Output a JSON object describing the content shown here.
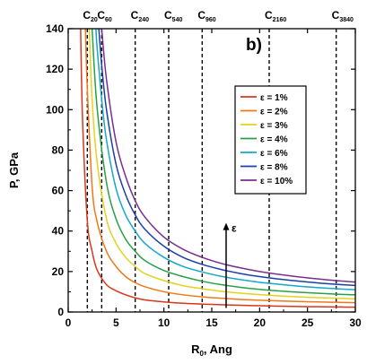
{
  "chart_data": {
    "type": "line",
    "title": "",
    "panel_label": "b)",
    "xlabel": {
      "main": "R",
      "sub": "0",
      "rest": ",  Ang"
    },
    "ylabel": "P, GPa",
    "xlim": [
      0,
      30
    ],
    "ylim": [
      0,
      140
    ],
    "x_ticks": [
      0,
      5,
      10,
      15,
      20,
      25,
      30
    ],
    "y_ticks": [
      0,
      20,
      40,
      60,
      80,
      100,
      120,
      140
    ],
    "grid": false,
    "legend_position": "right-middle",
    "series": [
      {
        "name": "ε = 1%",
        "color": "#d9361c",
        "x": [
          1.3,
          1.5,
          2,
          2.5,
          3,
          4,
          5,
          6,
          7,
          8,
          10,
          12,
          14,
          16,
          18,
          20,
          22,
          24,
          26,
          28,
          30
        ],
        "y": [
          140,
          95,
          45,
          30,
          21,
          13.5,
          10.5,
          8.5,
          7,
          6,
          5,
          4.3,
          3.9,
          3.6,
          3.3,
          3.1,
          2.9,
          2.7,
          2.6,
          2.5,
          2.4
        ]
      },
      {
        "name": "ε = 2%",
        "color": "#f07818",
        "x": [
          1.8,
          2,
          2.5,
          3,
          4,
          5,
          6,
          7,
          8,
          10,
          12,
          14,
          16,
          18,
          20,
          22,
          24,
          26,
          28,
          30
        ],
        "y": [
          140,
          110,
          62,
          45,
          30,
          22.5,
          17.5,
          14.5,
          12.5,
          10,
          8.5,
          7.5,
          6.8,
          6.2,
          5.8,
          5.5,
          5.2,
          5,
          4.8,
          4.6
        ]
      },
      {
        "name": "ε = 3%",
        "color": "#e3d21e",
        "x": [
          2.2,
          2.5,
          3,
          4,
          5,
          6,
          7,
          8,
          10,
          12,
          14,
          16,
          18,
          20,
          22,
          24,
          26,
          28,
          30
        ],
        "y": [
          140,
          105,
          75,
          46,
          34,
          27,
          22.5,
          19,
          15.5,
          13,
          11.5,
          10.2,
          9.3,
          8.6,
          8,
          7.5,
          7.1,
          6.8,
          6.5
        ]
      },
      {
        "name": "ε = 4%",
        "color": "#28a046",
        "x": [
          2.5,
          3,
          4,
          5,
          6,
          7,
          8,
          10,
          12,
          14,
          16,
          18,
          20,
          22,
          24,
          26,
          28,
          30
        ],
        "y": [
          140,
          102,
          64,
          46,
          36,
          30,
          25.5,
          20.5,
          17.5,
          15.2,
          13.5,
          12.2,
          11.2,
          10.4,
          9.8,
          9.3,
          8.8,
          8.5
        ]
      },
      {
        "name": "ε = 6%",
        "color": "#16a7c9",
        "x": [
          2.9,
          3,
          3.5,
          4,
          5,
          6,
          7,
          8,
          10,
          12,
          14,
          16,
          18,
          20,
          22,
          24,
          26,
          28,
          30
        ],
        "y": [
          140,
          132,
          105,
          85,
          61,
          48,
          40,
          34,
          27,
          22.5,
          19.8,
          17.6,
          16,
          14.7,
          13.7,
          12.8,
          12.1,
          11.5,
          11
        ]
      },
      {
        "name": "ε = 8%",
        "color": "#1c3fa6",
        "x": [
          3.2,
          3.5,
          4,
          5,
          6,
          7,
          8,
          10,
          12,
          14,
          16,
          18,
          20,
          22,
          24,
          26,
          28,
          30
        ],
        "y": [
          140,
          122,
          100,
          73,
          58,
          48,
          41,
          32.5,
          27,
          23.5,
          21,
          19,
          17.5,
          16.3,
          15.3,
          14.4,
          13.7,
          13.1
        ]
      },
      {
        "name": "ε = 10%",
        "color": "#7a2e8e",
        "x": [
          3.5,
          4,
          5,
          6,
          7,
          8,
          10,
          12,
          14,
          16,
          18,
          20,
          22,
          24,
          26,
          28,
          30
        ],
        "y": [
          140,
          115,
          84,
          67,
          55,
          47,
          37,
          31,
          27,
          24,
          21.8,
          20,
          18.6,
          17.4,
          16.4,
          15.5,
          14.8
        ]
      }
    ],
    "vertical_lines": [
      {
        "main": "C",
        "sub": "20",
        "x": 2
      },
      {
        "main": "C",
        "sub": "60",
        "x": 3.5
      },
      {
        "main": "C",
        "sub": "240",
        "x": 7
      },
      {
        "main": "C",
        "sub": "540",
        "x": 10.5
      },
      {
        "main": "C",
        "sub": "960",
        "x": 14
      },
      {
        "main": "C",
        "sub": "2160",
        "x": 21
      },
      {
        "main": "C",
        "sub": "3840",
        "x": 28
      }
    ],
    "arrow": {
      "label": "ε",
      "x": 16.5,
      "y_from": 2,
      "y_to": 44
    }
  }
}
